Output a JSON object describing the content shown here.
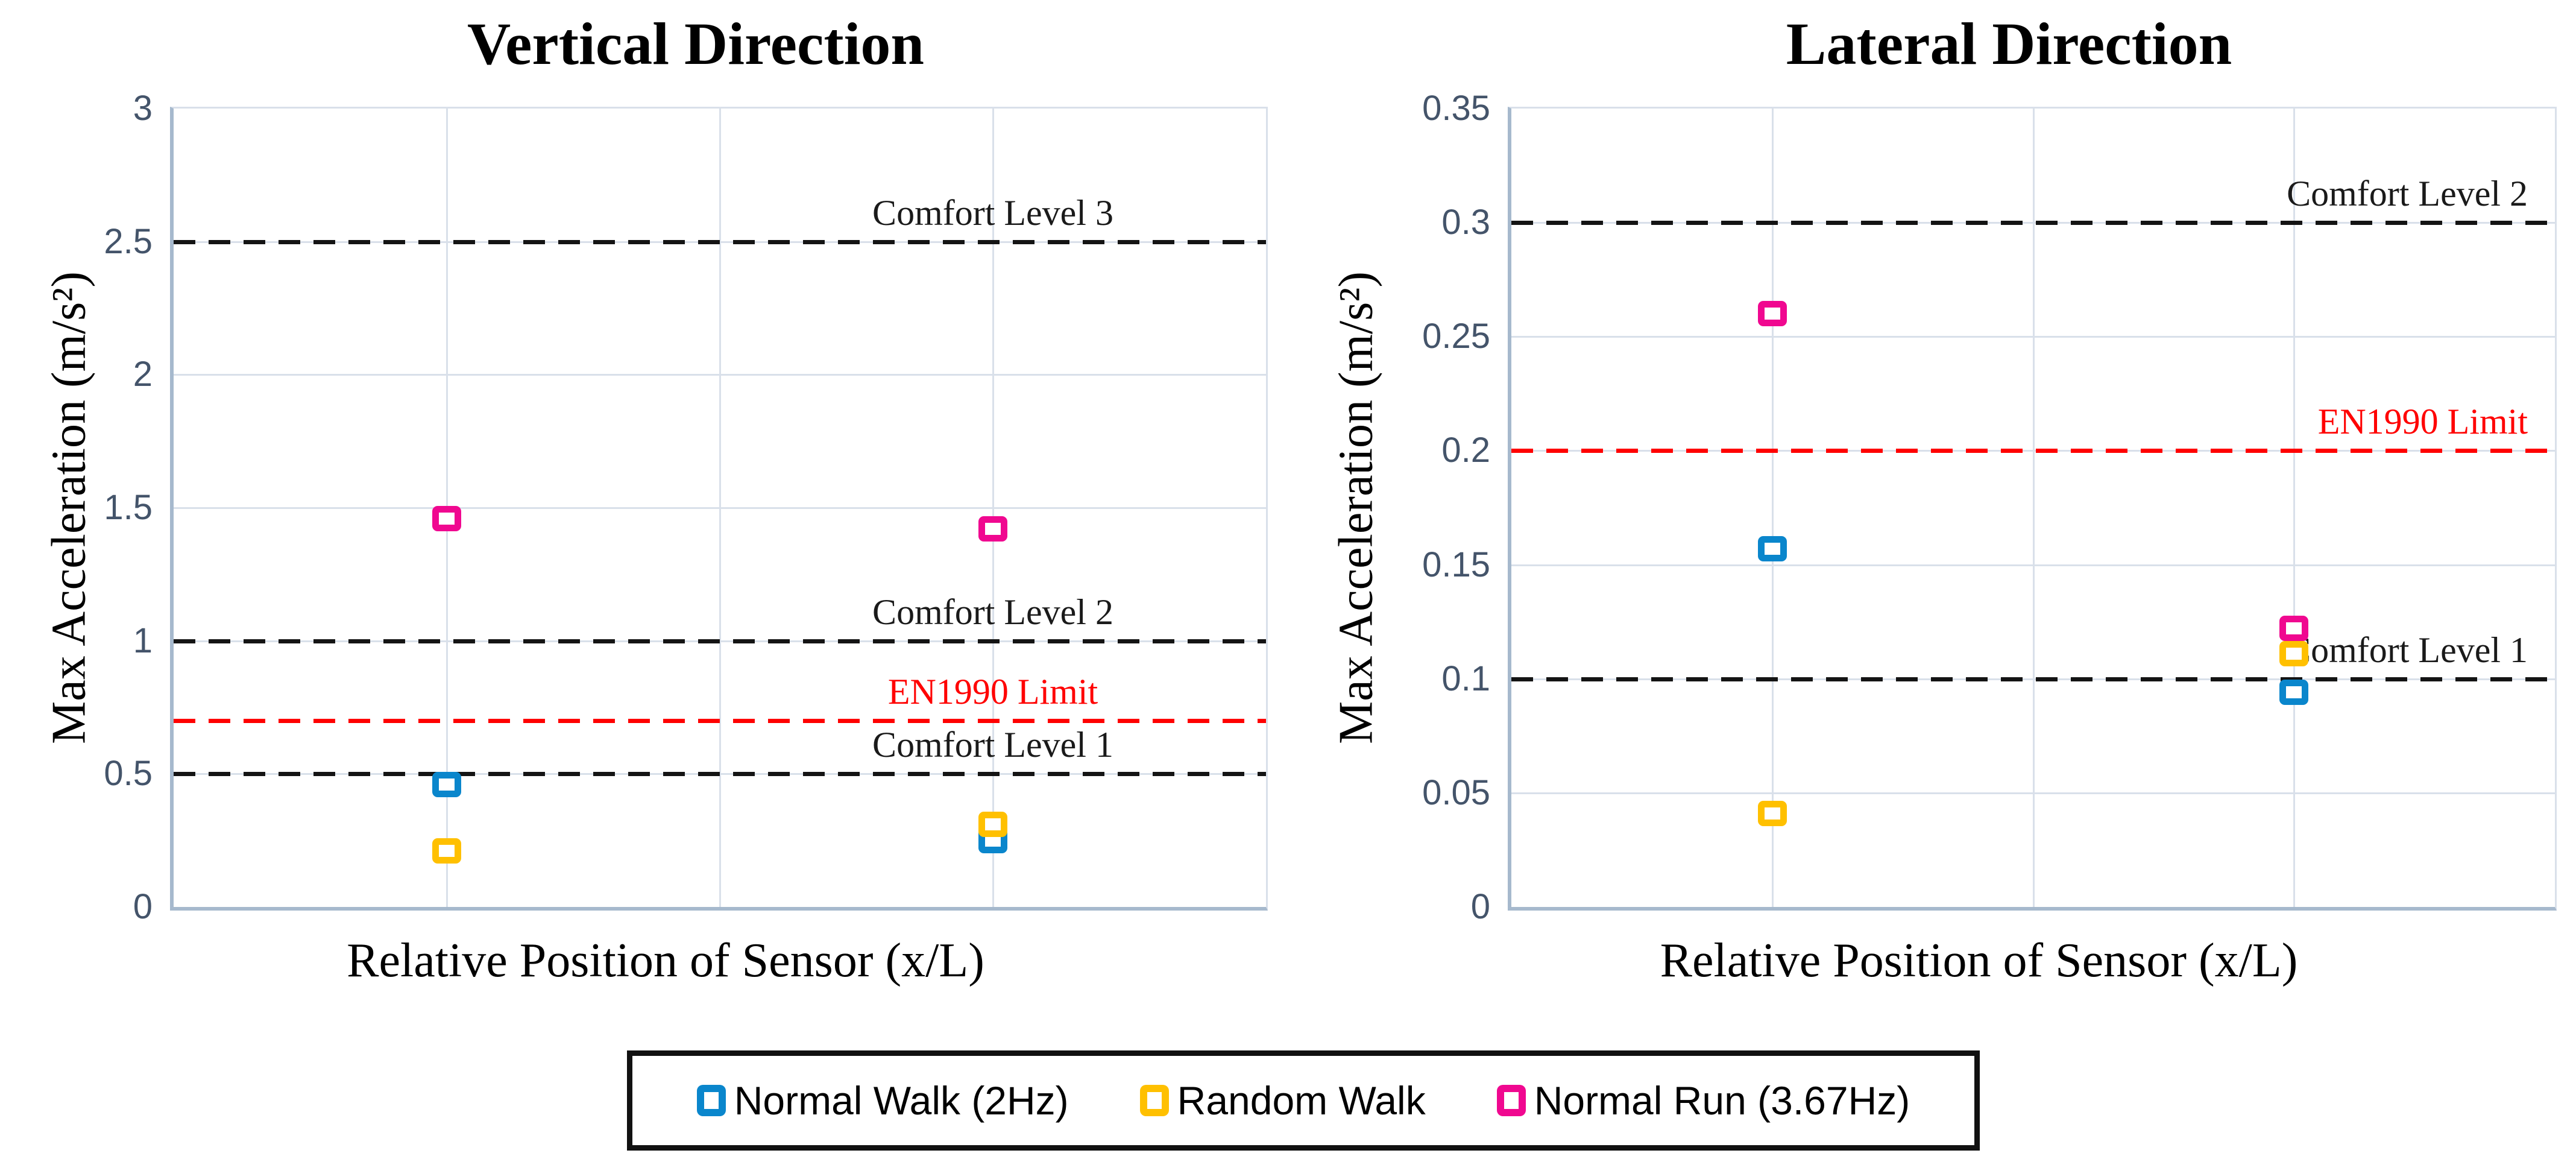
{
  "chart_data": [
    {
      "type": "scatter",
      "title": "Vertical Direction",
      "xlabel": "Relative Position of Sensor (x/L)",
      "ylabel": "Max Acceleration (m/s²)",
      "xlim": [
        0,
        1
      ],
      "ylim": [
        0,
        3
      ],
      "grid": "on",
      "xgrid": [
        0.25,
        0.5,
        0.75
      ],
      "yticks": [
        {
          "label": "3",
          "value": 3
        },
        {
          "label": "2.5",
          "value": 2.5
        },
        {
          "label": "2",
          "value": 2
        },
        {
          "label": "1.5",
          "value": 1.5
        },
        {
          "label": "1",
          "value": 1
        },
        {
          "label": "0.5",
          "value": 0.5
        },
        {
          "label": "0",
          "value": 0
        }
      ],
      "ref_lines": [
        {
          "label": "Comfort Level 3",
          "value": 2.5,
          "color": "#141414",
          "text_color": "#1a1a1a"
        },
        {
          "label": "Comfort Level 2",
          "value": 1.0,
          "color": "#141414",
          "text_color": "#1a1a1a"
        },
        {
          "label": "EN1990 Limit",
          "value": 0.7,
          "color": "#FF0000",
          "text_color": "#FF0000"
        },
        {
          "label": "Comfort Level 1",
          "value": 0.5,
          "color": "#141414",
          "text_color": "#1a1a1a"
        }
      ],
      "ref_label_mode": "center75",
      "series": [
        {
          "name": "Normal Walk (2Hz)",
          "color": "#0A86CC",
          "points": [
            {
              "x": 0.25,
              "y": 0.46
            },
            {
              "x": 0.75,
              "y": 0.25
            }
          ]
        },
        {
          "name": "Random Walk",
          "color": "#FFC000",
          "points": [
            {
              "x": 0.25,
              "y": 0.21
            },
            {
              "x": 0.75,
              "y": 0.31
            }
          ]
        },
        {
          "name": "Normal Run (3.67Hz)",
          "color": "#F00890",
          "points": [
            {
              "x": 0.25,
              "y": 1.46
            },
            {
              "x": 0.75,
              "y": 1.42
            }
          ]
        }
      ]
    },
    {
      "type": "scatter",
      "title": "Lateral Direction",
      "xlabel": "Relative Position of Sensor (x/L)",
      "ylabel": "Max Acceleration (m/s²)",
      "xlim": [
        0,
        1
      ],
      "ylim": [
        0,
        0.35
      ],
      "grid": "on",
      "xgrid": [
        0.25,
        0.5,
        0.75
      ],
      "yticks": [
        {
          "label": "0.35",
          "value": 0.35
        },
        {
          "label": "0.3",
          "value": 0.3
        },
        {
          "label": "0.25",
          "value": 0.25
        },
        {
          "label": "0.2",
          "value": 0.2
        },
        {
          "label": "0.15",
          "value": 0.15
        },
        {
          "label": "0.1",
          "value": 0.1
        },
        {
          "label": "0.05",
          "value": 0.05
        },
        {
          "label": "0",
          "value": 0
        }
      ],
      "ref_lines": [
        {
          "label": "Comfort Level 2",
          "value": 0.3,
          "color": "#141414",
          "text_color": "#1a1a1a"
        },
        {
          "label": "EN1990 Limit",
          "value": 0.2,
          "color": "#FF0000",
          "text_color": "#FF0000"
        },
        {
          "label": "Comfort Level 1",
          "value": 0.1,
          "color": "#141414",
          "text_color": "#1a1a1a"
        }
      ],
      "ref_label_mode": "right",
      "series": [
        {
          "name": "Normal Walk (2Hz)",
          "color": "#0A86CC",
          "points": [
            {
              "x": 0.25,
              "y": 0.157
            },
            {
              "x": 0.75,
              "y": 0.094
            }
          ]
        },
        {
          "name": "Random Walk",
          "color": "#FFC000",
          "points": [
            {
              "x": 0.25,
              "y": 0.041
            },
            {
              "x": 0.75,
              "y": 0.111
            }
          ]
        },
        {
          "name": "Normal Run (3.67Hz)",
          "color": "#F00890",
          "points": [
            {
              "x": 0.25,
              "y": 0.26
            },
            {
              "x": 0.75,
              "y": 0.122
            }
          ]
        }
      ]
    }
  ],
  "legend": {
    "entries": [
      {
        "label": "Normal Walk (2Hz)",
        "color": "#0A86CC",
        "marker": "square-outline-marker"
      },
      {
        "label": "Random Walk",
        "color": "#FFC000",
        "marker": "square-outline-marker"
      },
      {
        "label": "Normal Run (3.67Hz)",
        "color": "#F00890",
        "marker": "square-outline-marker"
      }
    ]
  },
  "style_colors": {
    "tick_text": "#44546A",
    "gridline": "#D9E0EA",
    "axis_spine": "#A6B9CD",
    "en1990_red": "#FF0000",
    "dashed_black": "#141414"
  }
}
